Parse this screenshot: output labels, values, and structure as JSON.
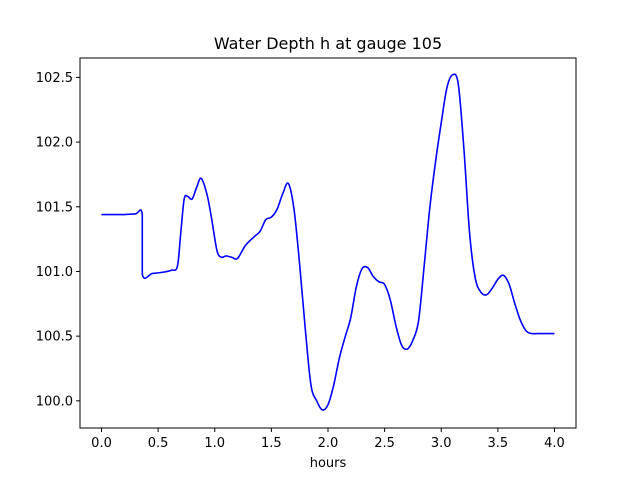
{
  "chart_data": {
    "type": "line",
    "title": "Water Depth h at gauge 105",
    "xlabel": "hours",
    "ylabel": "",
    "xlim": [
      -0.19,
      4.19
    ],
    "ylim": [
      99.79,
      102.65
    ],
    "xticks": [
      0.0,
      0.5,
      1.0,
      1.5,
      2.0,
      2.5,
      3.0,
      3.5,
      4.0
    ],
    "xtick_labels": [
      "0.0",
      "0.5",
      "1.0",
      "1.5",
      "2.0",
      "2.5",
      "3.0",
      "3.5",
      "4.0"
    ],
    "yticks": [
      100.0,
      100.5,
      101.0,
      101.5,
      102.0,
      102.5
    ],
    "ytick_labels": [
      "100.0",
      "100.5",
      "101.0",
      "101.5",
      "102.0",
      "102.5"
    ],
    "grid": false,
    "series": [
      {
        "color": "#0000ff",
        "x": [
          0.0,
          0.1,
          0.2,
          0.3,
          0.36,
          0.36,
          0.45,
          0.55,
          0.62,
          0.67,
          0.7,
          0.73,
          0.76,
          0.8,
          0.84,
          0.88,
          0.93,
          0.97,
          1.02,
          1.06,
          1.1,
          1.15,
          1.2,
          1.27,
          1.35,
          1.4,
          1.45,
          1.5,
          1.55,
          1.6,
          1.65,
          1.7,
          1.75,
          1.8,
          1.85,
          1.9,
          1.95,
          2.0,
          2.05,
          2.1,
          2.15,
          2.2,
          2.25,
          2.3,
          2.35,
          2.4,
          2.45,
          2.5,
          2.55,
          2.6,
          2.65,
          2.7,
          2.75,
          2.8,
          2.85,
          2.9,
          2.95,
          3.0,
          3.05,
          3.1,
          3.15,
          3.2,
          3.25,
          3.3,
          3.35,
          3.4,
          3.45,
          3.5,
          3.55,
          3.6,
          3.65,
          3.7,
          3.75,
          3.8,
          3.85,
          3.9,
          3.95,
          4.0
        ],
        "values": [
          101.44,
          101.44,
          101.44,
          101.445,
          101.44,
          100.98,
          100.985,
          100.995,
          101.01,
          101.04,
          101.3,
          101.56,
          101.58,
          101.56,
          101.65,
          101.72,
          101.6,
          101.42,
          101.16,
          101.11,
          101.12,
          101.11,
          101.1,
          101.2,
          101.27,
          101.31,
          101.4,
          101.42,
          101.48,
          101.6,
          101.68,
          101.48,
          101.05,
          100.55,
          100.12,
          100.0,
          99.93,
          99.97,
          100.12,
          100.33,
          100.49,
          100.64,
          100.88,
          101.02,
          101.03,
          100.96,
          100.92,
          100.9,
          100.78,
          100.58,
          100.43,
          100.4,
          100.47,
          100.62,
          101.05,
          101.5,
          101.85,
          102.15,
          102.42,
          102.52,
          102.45,
          101.95,
          101.3,
          100.95,
          100.84,
          100.82,
          100.87,
          100.94,
          100.97,
          100.9,
          100.75,
          100.62,
          100.54,
          100.52,
          100.52,
          100.52,
          100.52,
          100.52
        ]
      }
    ]
  }
}
